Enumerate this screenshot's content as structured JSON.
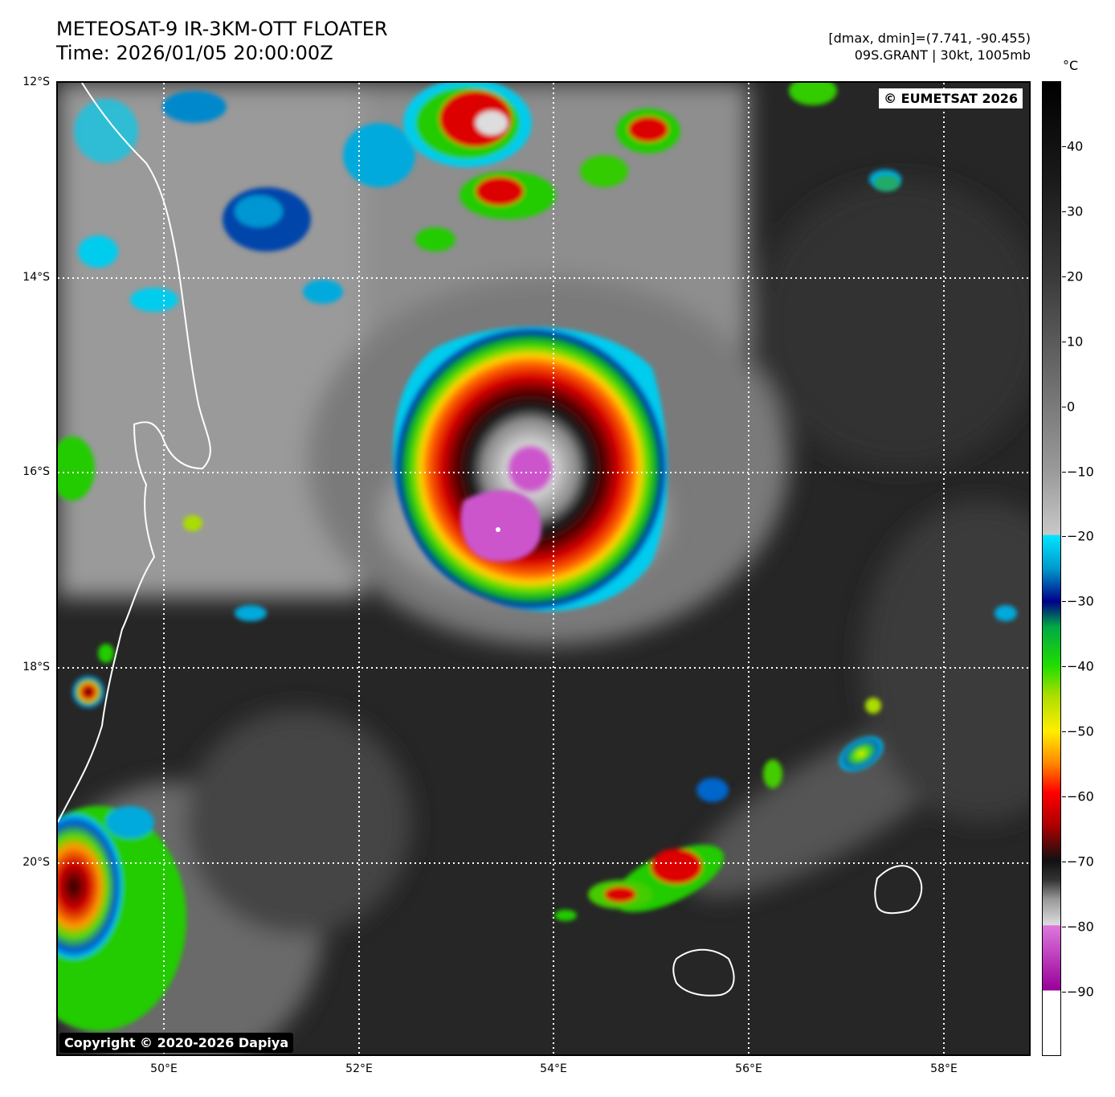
{
  "header": {
    "title": "METEOSAT-9 IR-3KM-OTT FLOATER",
    "time": "Time: 2026/01/05 20:00:00Z",
    "range": "[dmax, dmin]=(7.741, -90.455)",
    "storm": "09S.GRANT | 30kt, 1005mb"
  },
  "map": {
    "credit_top": "© EUMETSAT 2026",
    "credit_bottom": "Copyright © 2020-2026 Dapiya",
    "lat_labels": [
      "12°S",
      "14°S",
      "16°S",
      "18°S",
      "20°S"
    ],
    "lon_labels": [
      "50°E",
      "52°E",
      "54°E",
      "56°E",
      "58°E"
    ],
    "storm_center": {
      "lat": -16.55,
      "lon": 53.45
    },
    "extent": {
      "lon_min": 48.9,
      "lon_max": 58.9,
      "lat_min": -22.0,
      "lat_max": -12.0
    }
  },
  "colorbar": {
    "unit": "°C",
    "labels": [
      "40",
      "30",
      "20",
      "10",
      "0",
      "−10",
      "−20",
      "−30",
      "−40",
      "−50",
      "−60",
      "−70",
      "−80",
      "−90"
    ],
    "values": [
      40,
      30,
      20,
      10,
      0,
      -10,
      -20,
      -30,
      -40,
      -50,
      -60,
      -70,
      -80,
      -90
    ],
    "range": [
      -100,
      50
    ]
  }
}
